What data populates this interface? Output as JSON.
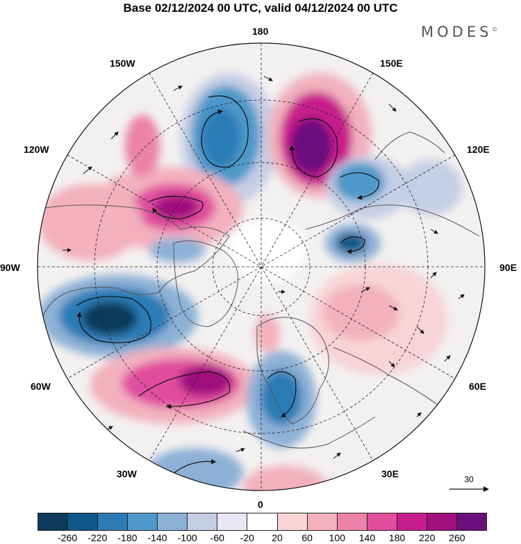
{
  "title": "Base 02/12/2024 00 UTC, valid 04/12/2024 00 UTC",
  "brand": "MODES",
  "brand_mark": "©",
  "longitude_labels": {
    "lon_180": "180",
    "lon_150w": "150W",
    "lon_150e": "150E",
    "lon_120w": "120W",
    "lon_120e": "120E",
    "lon_90w": "90W",
    "lon_90e": "90E",
    "lon_60w": "60W",
    "lon_60e": "60E",
    "lon_30w": "30W",
    "lon_30e": "30E",
    "lon_0": "0"
  },
  "reference_vector": {
    "label": "30"
  },
  "colorbar": {
    "colors": [
      "#0d3b59",
      "#10588a",
      "#2c7bb6",
      "#4e98c9",
      "#8db1d6",
      "#c4cee4",
      "#e8e8f2",
      "#ffffff",
      "#f8d4d7",
      "#f2b1bd",
      "#ec82a8",
      "#e04d9d",
      "#c81d8c",
      "#a0107e",
      "#6b0f7d"
    ],
    "ticks": [
      "-260",
      "-220",
      "-180",
      "-140",
      "-100",
      "-60",
      "-20",
      "20",
      "60",
      "100",
      "140",
      "180",
      "220",
      "260"
    ]
  },
  "anomaly_centers": [
    {
      "name": "negative-northeast-pacific",
      "value": -220
    },
    {
      "name": "positive-east-siberia",
      "value": 260
    },
    {
      "name": "negative-okhotsk",
      "value": -140
    },
    {
      "name": "positive-alaska-beaufort",
      "value": 220
    },
    {
      "name": "negative-central-siberia",
      "value": -180
    },
    {
      "name": "negative-labrador",
      "value": -260
    },
    {
      "name": "positive-north-atlantic",
      "value": 220
    },
    {
      "name": "negative-scandinavia",
      "value": -180
    },
    {
      "name": "positive-west-siberia",
      "value": 100
    }
  ]
}
